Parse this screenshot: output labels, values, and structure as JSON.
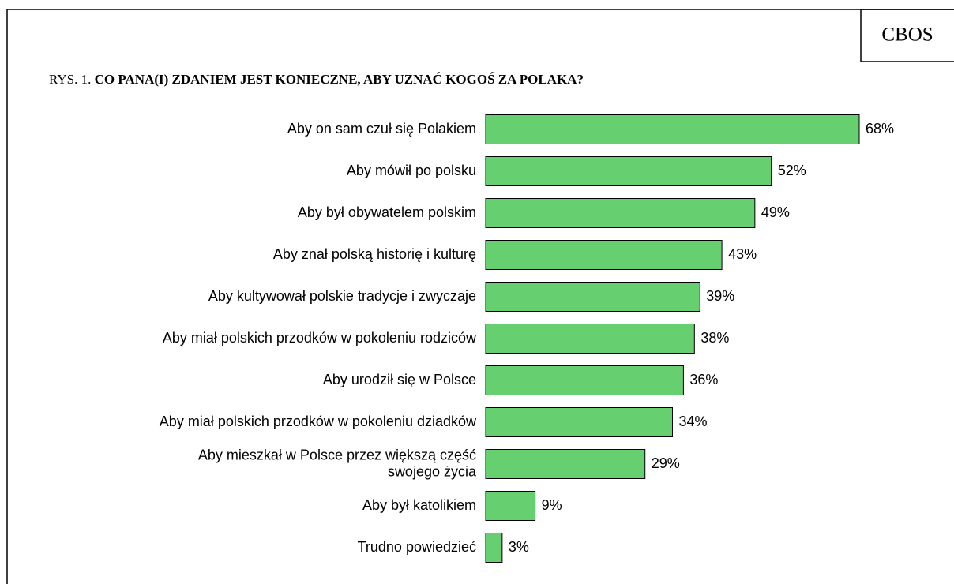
{
  "chart_data": {
    "type": "barh",
    "brand": "CBOS",
    "figure_label": "RYS. 1.",
    "title": "CO PANA(I) ZDANIEM JEST KONIECZNE, ABY UZNAĆ KOGOŚ ZA POLAKA?",
    "categories": [
      "Aby on sam czuł się Polakiem",
      "Aby mówił po polsku",
      "Aby był obywatelem polskim",
      "Aby znał polską historię i kulturę",
      "Aby kultywował polskie tradycje i zwyczaje",
      "Aby miał polskich przodków w pokoleniu rodziców",
      "Aby urodził się w Polsce",
      "Aby miał polskich przodków w pokoleniu dziadków",
      "Aby mieszkał w Polsce przez większą część\nswojego życia",
      "Aby był katolikiem",
      "Trudno powiedzieć"
    ],
    "values": [
      68,
      52,
      49,
      43,
      39,
      38,
      36,
      34,
      29,
      9,
      3
    ],
    "value_labels": [
      "68%",
      "52%",
      "49%",
      "43%",
      "39%",
      "38%",
      "36%",
      "34%",
      "29%",
      "9%",
      "3%"
    ],
    "color": "#66cf70"
  }
}
